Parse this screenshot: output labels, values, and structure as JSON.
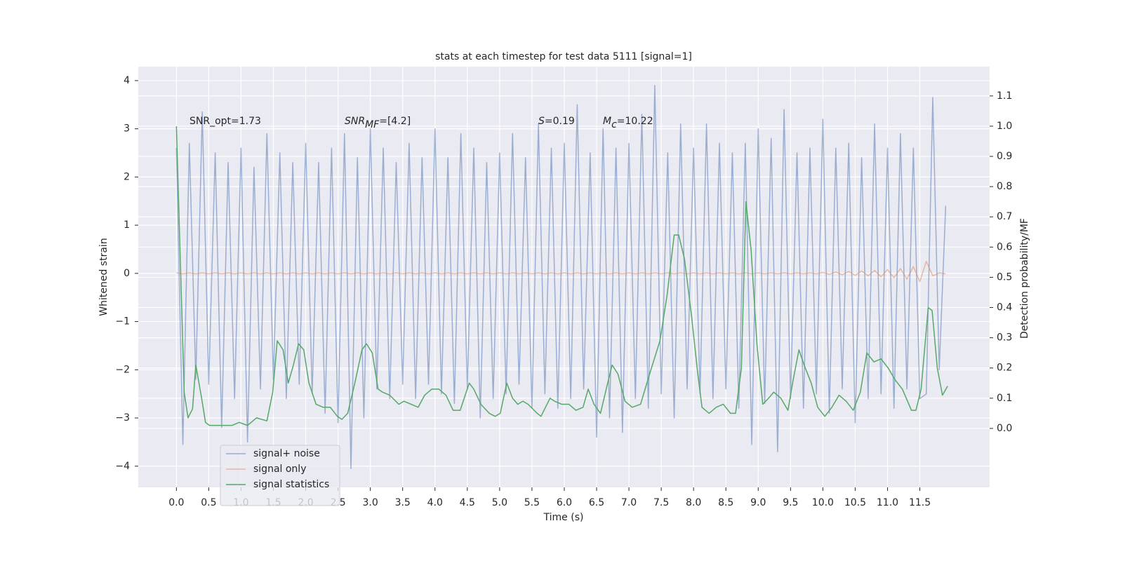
{
  "chart_data": {
    "type": "line",
    "title": "stats at each timestep for test data 5111 [signal=1]",
    "xlabel": "Time (s)",
    "ylabel": "Whitened strain",
    "y2label": "Detection probability/MF",
    "annotations": [
      {
        "text": "SNR_opt=1.73"
      },
      {
        "italic": "SNR",
        "sub": "MF",
        "text": "=[4.2]"
      },
      {
        "italic": "S",
        "text": "=0.19"
      },
      {
        "italic": "M",
        "sub": "c",
        "text": "=10.22"
      }
    ],
    "xlim": [
      -0.59,
      12.58
    ],
    "ylim": [
      -4.44,
      4.29
    ],
    "y2lim": [
      -0.195,
      1.197
    ],
    "grid": true,
    "legend": "lower left",
    "xticks": [
      {
        "value": 0,
        "label": "0.0"
      },
      0.5,
      {
        "value": 1,
        "label": "1.0"
      },
      1.5,
      {
        "value": 2,
        "label": "2.0"
      },
      2.5,
      {
        "value": 3,
        "label": "3.0"
      },
      3.5,
      {
        "value": 4,
        "label": "4.0"
      },
      4.5,
      {
        "value": 5,
        "label": "5.0"
      },
      5.5,
      {
        "value": 6,
        "label": "6.0"
      },
      6.5,
      {
        "value": 7,
        "label": "7.0"
      },
      7.5,
      {
        "value": 8,
        "label": "8.0"
      },
      8.5,
      {
        "value": 9,
        "label": "9.0"
      },
      9.5,
      {
        "value": 10,
        "label": "10.0"
      },
      10.5,
      {
        "value": 11,
        "label": "11.0"
      },
      11.5
    ],
    "yticks": [
      {
        "value": -4,
        "label": "−4"
      },
      {
        "value": -3,
        "label": "−3"
      },
      {
        "value": -2,
        "label": "−2"
      },
      {
        "value": -1,
        "label": "−1"
      },
      0,
      1,
      2,
      3,
      4
    ],
    "y2ticks": [
      {
        "value": 0,
        "label": "0.0"
      },
      0.1,
      0.2,
      0.3,
      0.4,
      0.5,
      0.6,
      0.7,
      0.8,
      0.9,
      {
        "value": 1,
        "label": "1.0"
      },
      1.1
    ],
    "x": [
      0,
      0.1,
      0.2,
      0.3,
      0.4,
      0.5,
      0.6,
      0.7,
      0.8,
      0.9,
      1,
      1.1,
      1.2,
      1.3,
      1.4,
      1.5,
      1.6,
      1.7,
      1.8,
      1.9,
      2,
      2.1,
      2.2,
      2.3,
      2.4,
      2.5,
      2.6,
      2.7,
      2.8,
      2.9,
      3,
      3.1,
      3.2,
      3.3,
      3.4,
      3.5,
      3.6,
      3.7,
      3.8,
      3.9,
      4,
      4.1,
      4.2,
      4.3,
      4.4,
      4.5,
      4.6,
      4.7,
      4.8,
      4.9,
      5,
      5.1,
      5.2,
      5.3,
      5.4,
      5.5,
      5.6,
      5.7,
      5.8,
      5.9,
      6,
      6.1,
      6.2,
      6.3,
      6.4,
      6.5,
      6.6,
      6.7,
      6.8,
      6.9,
      7,
      7.1,
      7.2,
      7.3,
      7.4,
      7.5,
      7.6,
      7.7,
      7.8,
      7.9,
      8,
      8.1,
      8.2,
      8.3,
      8.4,
      8.5,
      8.6,
      8.7,
      8.8,
      8.9,
      9,
      9.1,
      9.2,
      9.3,
      9.4,
      9.5,
      9.6,
      9.7,
      9.8,
      9.9,
      10,
      10.1,
      10.2,
      10.3,
      10.4,
      10.5,
      10.6,
      10.7,
      10.8,
      10.9,
      11,
      11.1,
      11.2,
      11.3,
      11.4,
      11.5,
      11.6,
      11.7,
      11.8,
      11.9
    ],
    "series": [
      {
        "name": "signal+ noise",
        "color": "#4c72b0",
        "alpha": 0.5,
        "values": [
          2.6,
          -3.55,
          2.7,
          -2.2,
          3.35,
          -2.3,
          2.5,
          -3.2,
          2.3,
          -2.6,
          2.6,
          -3.5,
          2.2,
          -2.4,
          2.9,
          -2.2,
          2.5,
          -2.6,
          2.3,
          -2.3,
          2.7,
          -2.5,
          2.3,
          -2.9,
          2.6,
          -3.1,
          2.9,
          -4.05,
          2.4,
          -3.0,
          3.0,
          -2.4,
          2.6,
          -2.6,
          2.3,
          -2.3,
          2.7,
          -2.6,
          2.4,
          -2.3,
          3.0,
          -2.5,
          2.4,
          -2.7,
          2.9,
          -2.4,
          2.6,
          -3.0,
          2.3,
          -2.6,
          2.5,
          -2.5,
          2.9,
          -2.3,
          2.4,
          -2.8,
          3.1,
          -2.5,
          2.6,
          -2.8,
          2.7,
          -2.6,
          3.5,
          -2.4,
          2.5,
          -3.4,
          3.0,
          -3.0,
          2.6,
          -3.3,
          2.7,
          -2.6,
          3.3,
          -2.8,
          3.9,
          -2.5,
          2.5,
          -3.0,
          3.1,
          -2.4,
          2.6,
          -2.5,
          3.1,
          -2.6,
          2.7,
          -2.4,
          2.5,
          -2.8,
          2.7,
          -3.55,
          3.0,
          -2.7,
          2.8,
          -3.7,
          3.4,
          -2.6,
          2.5,
          -2.8,
          2.6,
          -2.5,
          3.2,
          -2.9,
          2.6,
          -2.4,
          2.7,
          -3.1,
          2.4,
          -2.6,
          3.1,
          -2.5,
          2.6,
          -2.8,
          2.9,
          -2.4,
          2.6,
          -2.6,
          -2.5,
          3.65,
          -2.0,
          1.4
        ]
      },
      {
        "name": "signal only",
        "color": "#dd8452",
        "alpha": 0.5,
        "values": [
          0.01,
          -0.01,
          0.01,
          -0.01,
          0.01,
          -0.01,
          0.01,
          -0.01,
          0.01,
          -0.01,
          0.01,
          -0.01,
          0.01,
          -0.01,
          0.01,
          -0.01,
          0.01,
          -0.01,
          0.01,
          -0.01,
          0.01,
          -0.01,
          0.01,
          -0.01,
          0.01,
          -0.01,
          0.01,
          -0.01,
          0.01,
          -0.01,
          0.01,
          -0.01,
          0.01,
          -0.01,
          0.01,
          -0.01,
          0.01,
          -0.01,
          0.01,
          -0.01,
          0.01,
          -0.01,
          0.01,
          -0.01,
          0.01,
          -0.01,
          0.01,
          -0.01,
          0.01,
          -0.01,
          0.01,
          -0.01,
          0.01,
          -0.01,
          0.01,
          -0.01,
          0.01,
          -0.01,
          0.01,
          -0.01,
          0.01,
          -0.01,
          0.01,
          -0.01,
          0.01,
          -0.01,
          0.01,
          -0.01,
          0.01,
          -0.01,
          0.01,
          -0.01,
          0.01,
          -0.01,
          0.01,
          -0.01,
          0.01,
          -0.01,
          0.01,
          -0.01,
          0.01,
          -0.01,
          0.01,
          -0.01,
          0.01,
          -0.01,
          0.01,
          -0.01,
          0.01,
          -0.01,
          0.01,
          -0.01,
          0.01,
          -0.01,
          0.01,
          -0.01,
          0.01,
          -0.01,
          0.01,
          -0.01,
          0.02,
          -0.02,
          0.03,
          -0.03,
          0.04,
          -0.04,
          0.05,
          -0.05,
          0.06,
          -0.07,
          0.08,
          -0.09,
          0.1,
          -0.12,
          0.14,
          -0.17,
          0.25,
          -0.05,
          0.01,
          -0.01
        ]
      },
      {
        "name": "signal statistics",
        "color": "#55a868",
        "alpha": 1,
        "axis": "y2",
        "x": [
          0,
          0.12,
          0.18,
          0.25,
          0.3,
          0.39,
          0.45,
          0.51,
          0.64,
          0.75,
          0.86,
          0.97,
          1.1,
          1.24,
          1.4,
          1.49,
          1.56,
          1.65,
          1.73,
          1.81,
          1.89,
          1.97,
          2.05,
          2.16,
          2.27,
          2.38,
          2.49,
          2.56,
          2.65,
          2.76,
          2.87,
          2.94,
          3.03,
          3.12,
          3.19,
          3.3,
          3.44,
          3.52,
          3.63,
          3.74,
          3.84,
          3.95,
          4.06,
          4.17,
          4.28,
          4.39,
          4.53,
          4.6,
          4.71,
          4.84,
          4.93,
          5.01,
          5.11,
          5.2,
          5.28,
          5.36,
          5.44,
          5.58,
          5.64,
          5.78,
          5.85,
          5.96,
          6.07,
          6.18,
          6.29,
          6.37,
          6.46,
          6.56,
          6.66,
          6.74,
          6.83,
          6.94,
          7.05,
          7.18,
          7.32,
          7.48,
          7.59,
          7.7,
          7.77,
          7.86,
          7.97,
          8.06,
          8.13,
          8.24,
          8.35,
          8.46,
          8.57,
          8.65,
          8.74,
          8.81,
          8.89,
          8.98,
          9.07,
          9.16,
          9.24,
          9.35,
          9.46,
          9.54,
          9.63,
          9.71,
          9.82,
          9.92,
          10.03,
          10.14,
          10.25,
          10.36,
          10.47,
          10.58,
          10.68,
          10.79,
          10.9,
          11.01,
          11.12,
          11.23,
          11.37,
          11.44,
          11.52,
          11.63,
          11.69,
          11.77,
          11.85,
          11.93
        ],
        "values": [
          1.0,
          0.12,
          0.035,
          0.065,
          0.21,
          0.1,
          0.02,
          0.01,
          0.01,
          0.01,
          0.01,
          0.02,
          0.01,
          0.035,
          0.025,
          0.12,
          0.29,
          0.26,
          0.15,
          0.21,
          0.28,
          0.26,
          0.15,
          0.08,
          0.07,
          0.07,
          0.04,
          0.03,
          0.05,
          0.15,
          0.26,
          0.28,
          0.25,
          0.13,
          0.12,
          0.11,
          0.08,
          0.09,
          0.08,
          0.07,
          0.11,
          0.13,
          0.13,
          0.11,
          0.06,
          0.06,
          0.15,
          0.13,
          0.08,
          0.05,
          0.04,
          0.05,
          0.15,
          0.1,
          0.08,
          0.09,
          0.08,
          0.05,
          0.04,
          0.1,
          0.09,
          0.08,
          0.08,
          0.06,
          0.07,
          0.13,
          0.08,
          0.05,
          0.14,
          0.21,
          0.18,
          0.09,
          0.07,
          0.08,
          0.18,
          0.29,
          0.44,
          0.64,
          0.64,
          0.56,
          0.37,
          0.19,
          0.07,
          0.05,
          0.07,
          0.08,
          0.05,
          0.05,
          0.2,
          0.75,
          0.59,
          0.28,
          0.08,
          0.1,
          0.12,
          0.1,
          0.06,
          0.16,
          0.26,
          0.21,
          0.15,
          0.07,
          0.04,
          0.07,
          0.11,
          0.09,
          0.06,
          0.12,
          0.25,
          0.22,
          0.23,
          0.2,
          0.16,
          0.13,
          0.06,
          0.06,
          0.13,
          0.4,
          0.39,
          0.2,
          0.11,
          0.14
        ]
      }
    ]
  }
}
